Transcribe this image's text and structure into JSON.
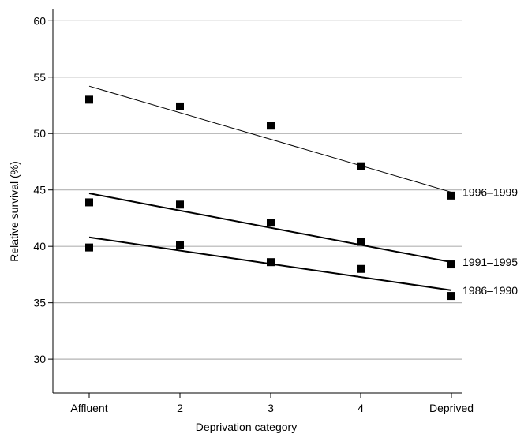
{
  "chart_data": {
    "type": "scatter",
    "xlabel": "Deprivation category",
    "ylabel": "Relative survival (%)",
    "categories": [
      "Affluent",
      "2",
      "3",
      "4",
      "Deprived"
    ],
    "ylim": [
      27,
      61
    ],
    "yticks": [
      30,
      35,
      40,
      45,
      50,
      55,
      60
    ],
    "grid": true,
    "series": [
      {
        "name": "1996–1999",
        "values": [
          53.0,
          52.4,
          50.7,
          47.1,
          44.5
        ],
        "trend": [
          54.2,
          44.8
        ],
        "trend_width": 1
      },
      {
        "name": "1991–1995",
        "values": [
          43.9,
          43.7,
          42.1,
          40.4,
          38.4
        ],
        "trend": [
          44.7,
          38.6
        ],
        "trend_width": 2
      },
      {
        "name": "1986–1990",
        "values": [
          39.9,
          40.1,
          38.6,
          38.0,
          35.6
        ],
        "trend": [
          40.8,
          36.1
        ],
        "trend_width": 2
      }
    ]
  }
}
